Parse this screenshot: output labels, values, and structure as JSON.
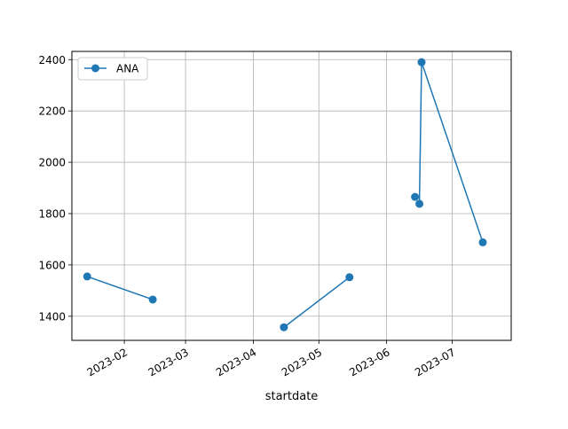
{
  "chart_data": {
    "type": "line",
    "xlabel": "startdate",
    "ylabel": "",
    "x_type": "date",
    "xlim": [
      "2023-01-08",
      "2023-07-28"
    ],
    "ylim": [
      1306,
      2432
    ],
    "x_ticks": [
      "2023-02-01",
      "2023-03-01",
      "2023-04-01",
      "2023-05-01",
      "2023-06-01",
      "2023-07-01"
    ],
    "x_tick_labels": [
      "2023-02",
      "2023-03",
      "2023-04",
      "2023-05",
      "2023-06",
      "2023-07"
    ],
    "y_ticks": [
      1400,
      1600,
      1800,
      2000,
      2200,
      2400
    ],
    "y_tick_labels": [
      "1400",
      "1600",
      "1800",
      "2000",
      "2200",
      "2400"
    ],
    "grid": true,
    "legend_position": "upper-left",
    "series": [
      {
        "name": "ANA",
        "color": "#1f77b4",
        "marker": "circle",
        "segments": [
          [
            {
              "x": "2023-01-15",
              "y": 1555
            },
            {
              "x": "2023-02-14",
              "y": 1465
            }
          ],
          [
            {
              "x": "2023-04-15",
              "y": 1357
            },
            {
              "x": "2023-05-15",
              "y": 1552
            }
          ],
          [
            {
              "x": "2023-06-14",
              "y": 1865
            }
          ],
          [
            {
              "x": "2023-06-16",
              "y": 1838
            },
            {
              "x": "2023-06-17",
              "y": 2390
            },
            {
              "x": "2023-07-15",
              "y": 1688
            }
          ]
        ]
      }
    ]
  }
}
